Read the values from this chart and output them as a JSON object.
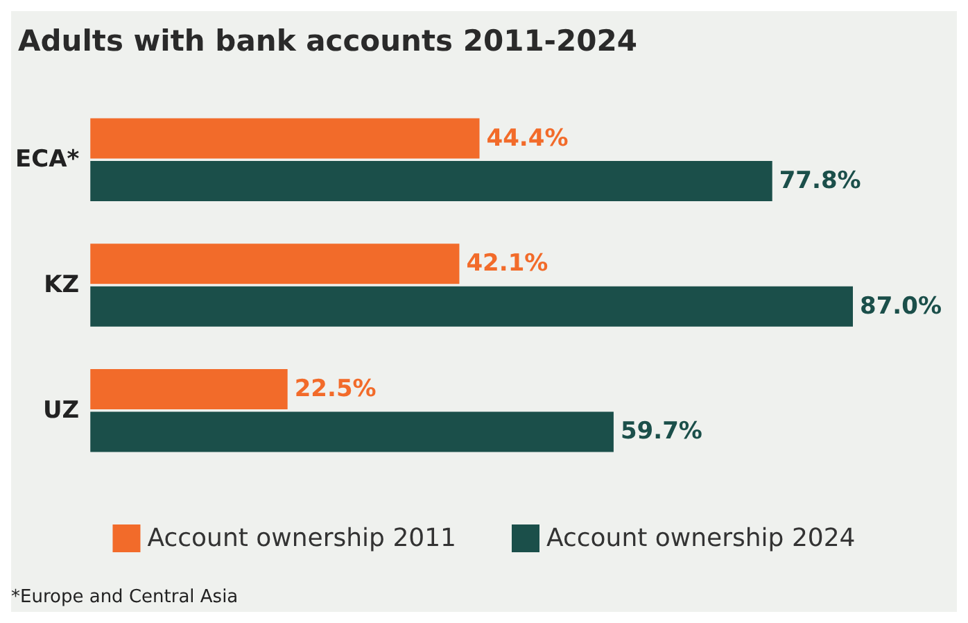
{
  "chart_data": {
    "type": "bar",
    "orientation": "horizontal",
    "title": "Adults with bank accounts 2011-2024",
    "categories": [
      "ECA*",
      "KZ",
      "UZ"
    ],
    "series": [
      {
        "name": "Account ownership 2011",
        "color": "#f26b2a",
        "values": [
          44.4,
          42.1,
          22.5
        ],
        "value_labels": [
          "44.4%",
          "42.1%",
          "22.5%"
        ]
      },
      {
        "name": "Account ownership 2024",
        "color": "#1b4f4a",
        "values": [
          77.8,
          87.0,
          59.7
        ],
        "value_labels": [
          "77.8%",
          "87.0%",
          "59.7%"
        ]
      }
    ],
    "legend": "bottom",
    "tick_labels": "y",
    "annotations": [
      "*Europe and Central Asia"
    ]
  }
}
